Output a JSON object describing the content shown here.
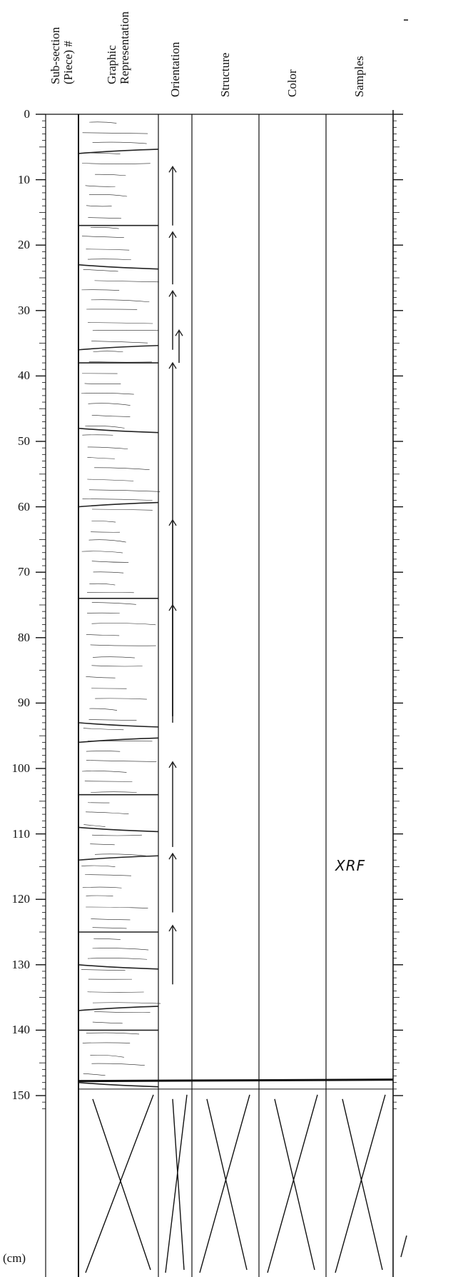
{
  "columns": [
    {
      "key": "subsection",
      "label": "Sub-section\n(Piece) #"
    },
    {
      "key": "graphic",
      "label": "Graphic\nRepresentation"
    },
    {
      "key": "orientation",
      "label": "Orientation"
    },
    {
      "key": "structure",
      "label": "Structure"
    },
    {
      "key": "color",
      "label": "Color"
    },
    {
      "key": "samples",
      "label": "Samples"
    }
  ],
  "depth_scale": {
    "unit_label": "(cm)",
    "ticks": [
      "0",
      "10",
      "20",
      "30",
      "40",
      "50",
      "60",
      "70",
      "80",
      "90",
      "100",
      "110",
      "120",
      "130",
      "140",
      "150"
    ],
    "max_cm": 150
  },
  "samples_annotation": {
    "text": "XRF",
    "depth_cm": 115
  },
  "orientation_arrows_cm": [
    [
      8,
      17
    ],
    [
      18,
      26
    ],
    [
      27,
      36
    ],
    [
      33,
      38
    ],
    [
      38,
      93
    ],
    [
      62,
      92
    ],
    [
      75,
      92
    ],
    [
      99,
      112
    ],
    [
      113,
      122
    ],
    [
      124,
      133
    ]
  ],
  "piece_boundaries_cm": [
    6,
    17,
    23,
    36,
    38,
    48,
    60,
    74,
    93,
    96,
    104,
    109,
    114,
    125,
    130,
    137,
    140,
    148
  ]
}
